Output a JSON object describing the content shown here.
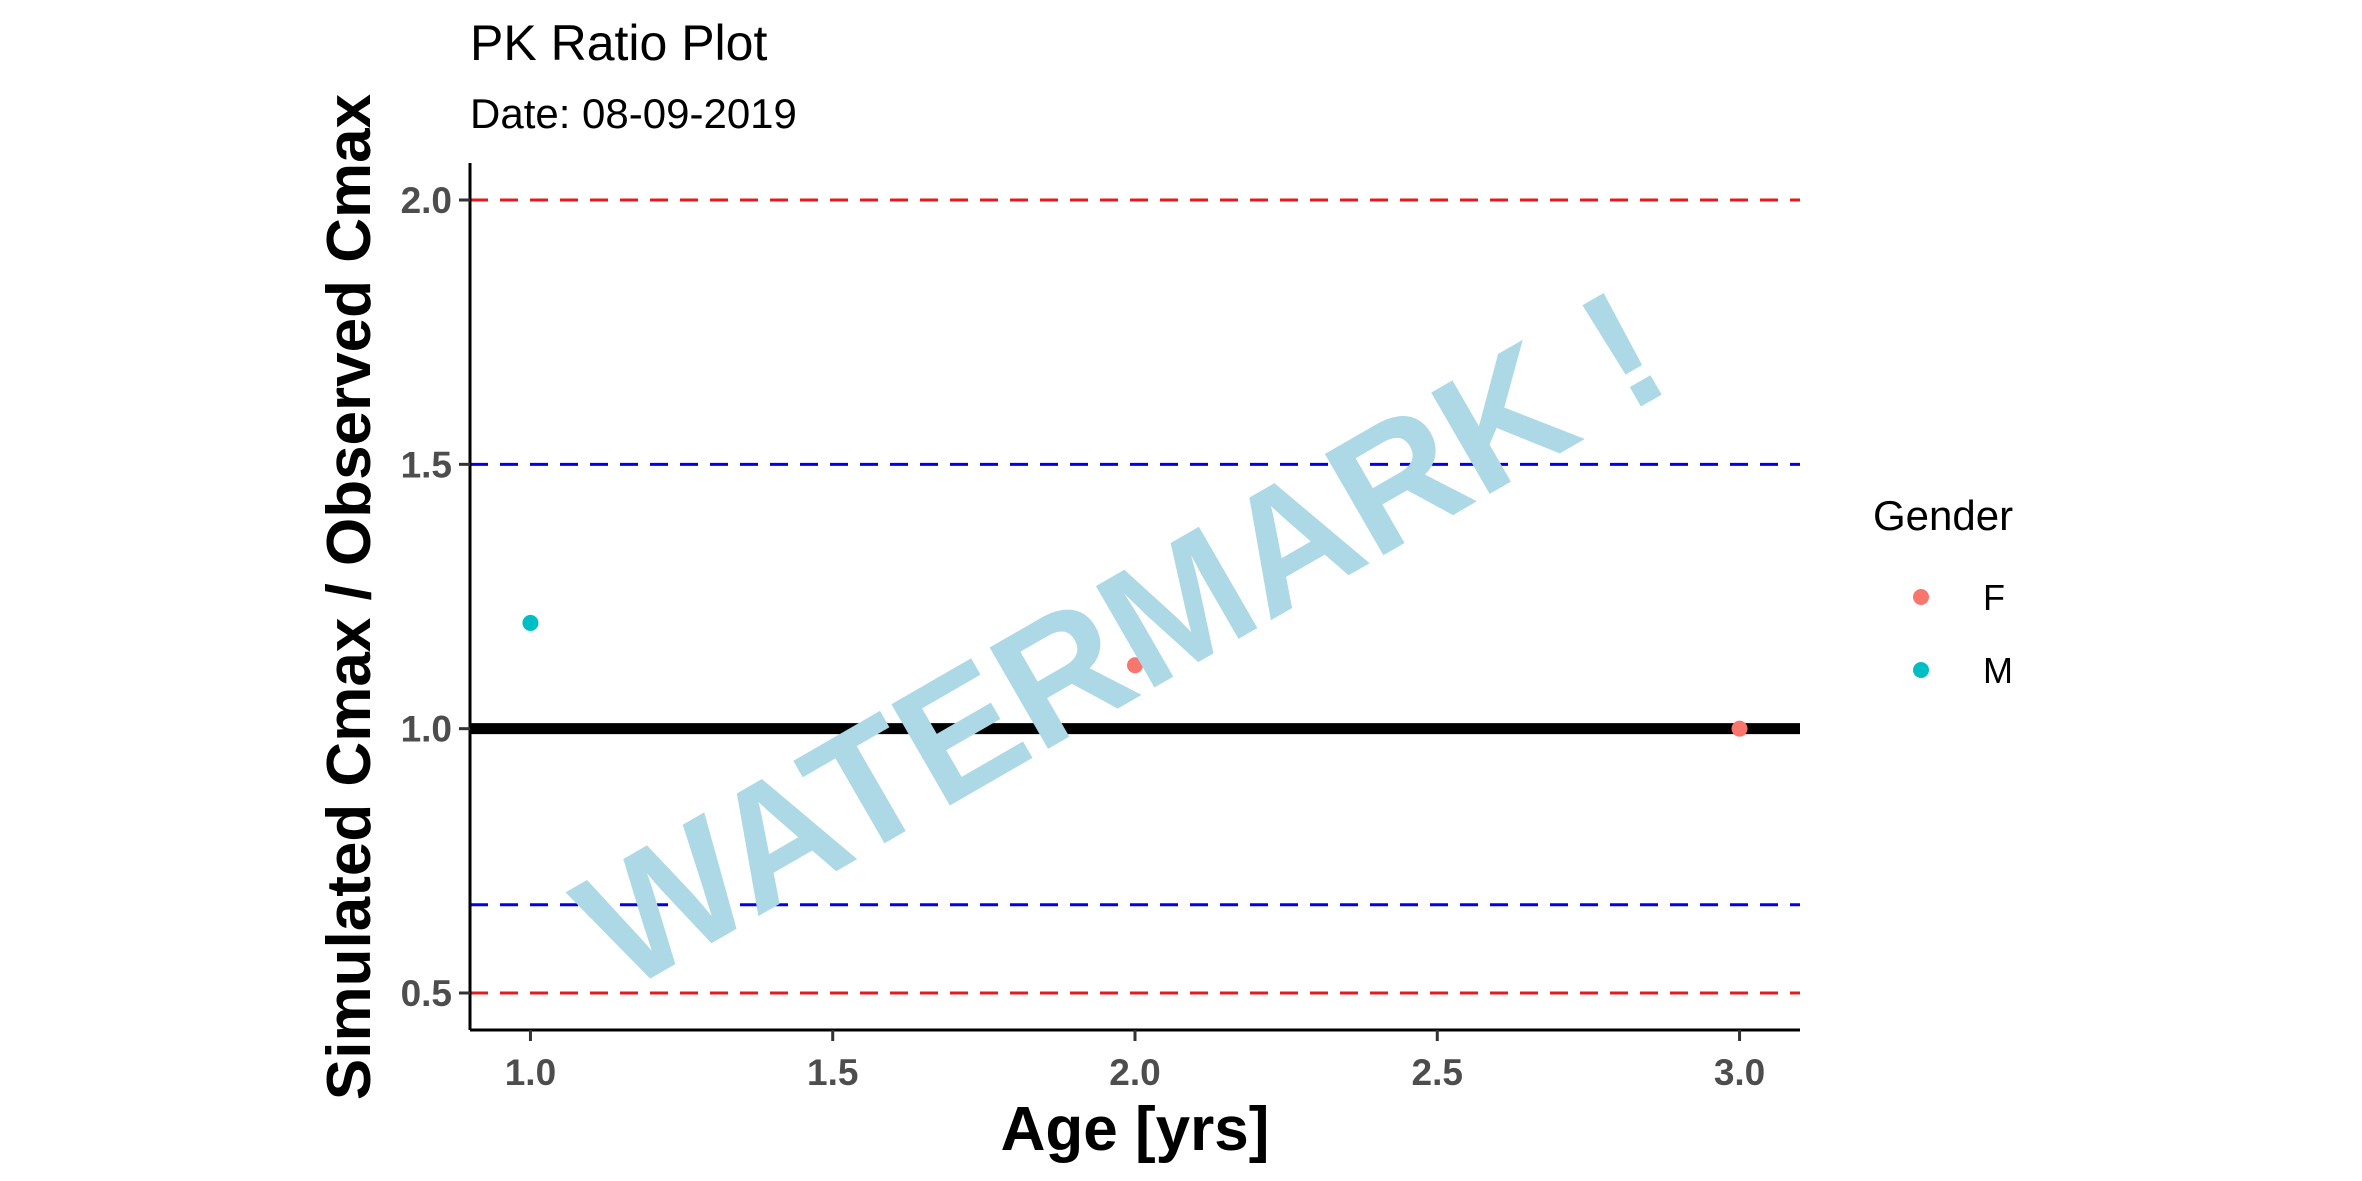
{
  "chart_data": {
    "type": "scatter",
    "title": "PK Ratio Plot",
    "subtitle": "Date: 08-09-2019",
    "xlabel": "Age [yrs]",
    "ylabel": "Simulated Cmax / Observed Cmax",
    "xlim": [
      0.9,
      3.1
    ],
    "ylim": [
      0.43,
      2.07
    ],
    "x_ticks": [
      1.0,
      1.5,
      2.0,
      2.5,
      3.0
    ],
    "x_tick_labels": [
      "1.0",
      "1.5",
      "2.0",
      "2.5",
      "3.0"
    ],
    "y_ticks": [
      0.5,
      1.0,
      1.5,
      2.0
    ],
    "y_tick_labels": [
      "0.5",
      "1.0",
      "1.5",
      "2.0"
    ],
    "grid": false,
    "legend": {
      "title": "Gender",
      "position": "right",
      "entries": [
        {
          "label": "F",
          "color": "#f8766d"
        },
        {
          "label": "M",
          "color": "#00bfc4"
        }
      ]
    },
    "series": [
      {
        "name": "F",
        "color": "#f8766d",
        "points": [
          {
            "x": 2.0,
            "y": 1.12
          },
          {
            "x": 3.0,
            "y": 1.0
          }
        ]
      },
      {
        "name": "M",
        "color": "#00bfc4",
        "points": [
          {
            "x": 1.0,
            "y": 1.2
          }
        ]
      }
    ],
    "reference_lines": [
      {
        "y": 2.0,
        "style": "dashed",
        "color": "#e41a1c"
      },
      {
        "y": 1.5,
        "style": "dashed",
        "color": "#0000ee"
      },
      {
        "y": 1.0,
        "style": "solid",
        "color": "#000000"
      },
      {
        "y": 0.667,
        "style": "dashed",
        "color": "#0000ee"
      },
      {
        "y": 0.5,
        "style": "dashed",
        "color": "#e41a1c"
      }
    ],
    "watermark": "WATERMARK !"
  }
}
